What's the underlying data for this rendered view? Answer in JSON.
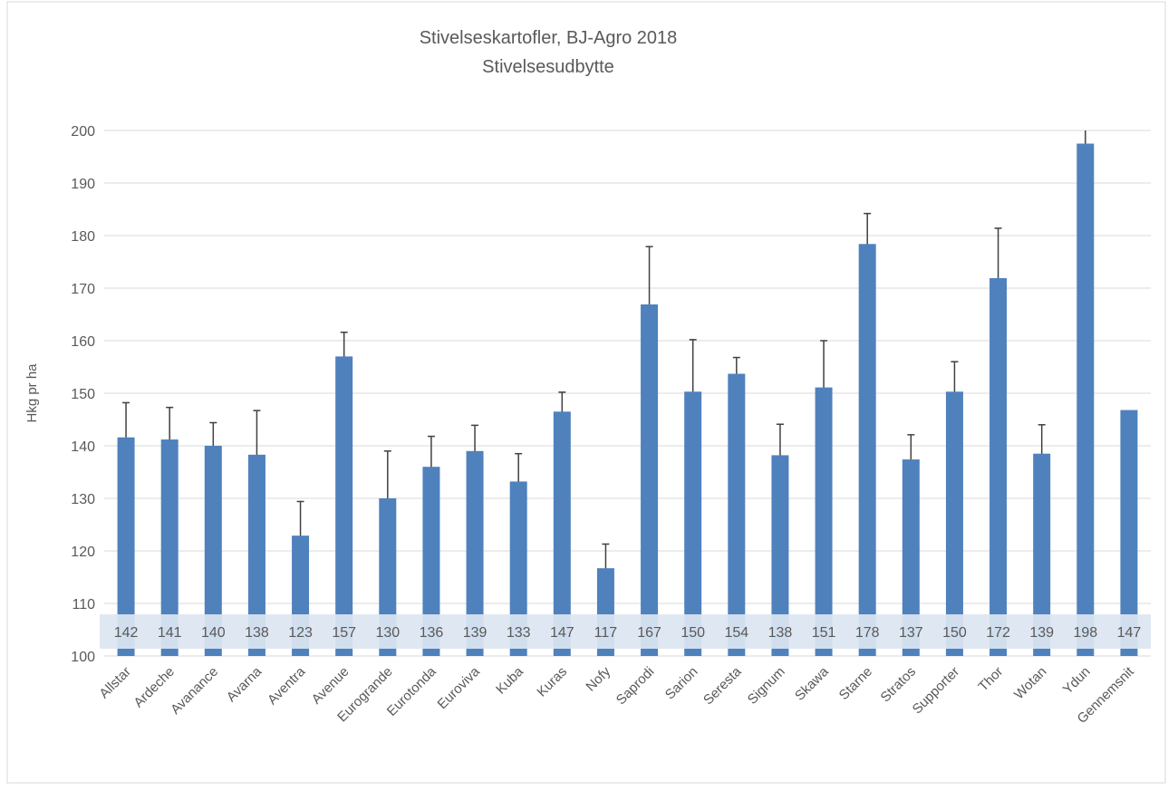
{
  "chart_data": {
    "type": "bar",
    "title": "Stivelseskartofler, BJ-Agro 2018",
    "subtitle": "Stivelsesudbytte",
    "y_label": "Hkg pr ha",
    "categories": [
      "Allstar",
      "Ardeche",
      "Avanance",
      "Avarna",
      "Aventra",
      "Avenue",
      "Eurogrande",
      "Eurotonda",
      "Euroviva",
      "Kuba",
      "Kuras",
      "Nofy",
      "Saprodi",
      "Sarion",
      "Seresta",
      "Signum",
      "Skawa",
      "Starne",
      "Stratos",
      "Supporter",
      "Thor",
      "Wotan",
      "Ydun",
      "Gennemsnit"
    ],
    "values": [
      141.6,
      141.2,
      140.0,
      138.3,
      122.9,
      157.0,
      130.0,
      136.0,
      139.0,
      133.2,
      146.5,
      116.7,
      166.9,
      150.3,
      153.7,
      138.2,
      151.1,
      178.4,
      137.4,
      150.3,
      171.9,
      138.5,
      197.5,
      146.8
    ],
    "value_labels": [
      "142",
      "141",
      "140",
      "138",
      "123",
      "157",
      "130",
      "136",
      "139",
      "133",
      "147",
      "117",
      "167",
      "150",
      "154",
      "138",
      "151",
      "178",
      "137",
      "150",
      "172",
      "139",
      "198",
      "147"
    ],
    "errors": [
      6.6,
      6.1,
      4.4,
      8.4,
      6.5,
      4.6,
      9.0,
      5.8,
      4.9,
      5.3,
      3.7,
      4.6,
      11.0,
      9.9,
      3.1,
      5.9,
      8.9,
      5.8,
      4.7,
      5.7,
      9.5,
      5.5,
      9.3,
      null
    ],
    "color": "#4f81bd",
    "ylim": [
      100,
      200
    ],
    "yticks": [
      100,
      110,
      120,
      130,
      140,
      150,
      160,
      170,
      180,
      190,
      200
    ],
    "grid": true
  }
}
